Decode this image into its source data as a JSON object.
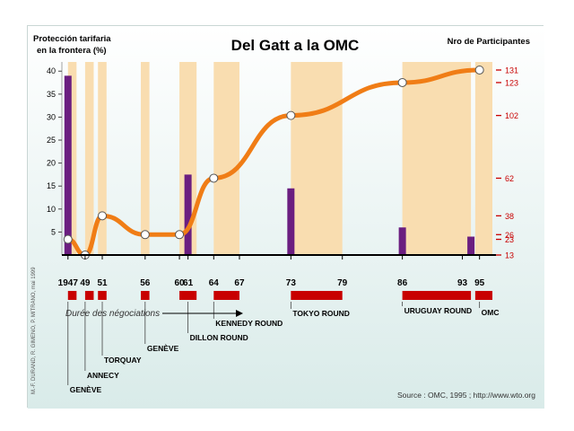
{
  "chart_data": {
    "type": "bar+line",
    "title": "Del Gatt a la OMC",
    "left_axis_title": "Protección tarifaria en la frontera (%)",
    "right_axis_title": "Nro de Participantes",
    "left_ticks": [
      5,
      10,
      15,
      20,
      25,
      30,
      35,
      40
    ],
    "ylim_left": [
      0,
      42
    ],
    "right_ticks": [
      13,
      23,
      26,
      38,
      62,
      102,
      123,
      131
    ],
    "ylim_right": [
      13,
      135
    ],
    "xlim": [
      1946.5,
      1996.5
    ],
    "bars": {
      "name": "Protección tarifaria en la frontera (%)",
      "x": [
        1947,
        1961,
        1973,
        1986,
        1994
      ],
      "values": [
        39,
        17.5,
        14.5,
        6,
        4
      ]
    },
    "participants": {
      "name": "Nro de Participantes",
      "x": [
        1947,
        1949,
        1951,
        1956,
        1960,
        1964,
        1973,
        1986,
        1995
      ],
      "values": [
        23,
        13,
        38,
        26,
        26,
        62,
        102,
        123,
        131
      ]
    },
    "negotiation_periods": [
      {
        "start": 1947,
        "end": 1948
      },
      {
        "start": 1949,
        "end": 1950
      },
      {
        "start": 1950.5,
        "end": 1951.5
      },
      {
        "start": 1955.5,
        "end": 1956.5
      },
      {
        "start": 1960,
        "end": 1962
      },
      {
        "start": 1964,
        "end": 1967
      },
      {
        "start": 1973,
        "end": 1979
      },
      {
        "start": 1986,
        "end": 1994
      },
      {
        "start": 1994.5,
        "end": 1996.5
      }
    ],
    "year_labels": [
      {
        "text": "1947",
        "x": 1947
      },
      {
        "text": "49",
        "x": 1949
      },
      {
        "text": "51",
        "x": 1951
      },
      {
        "text": "56",
        "x": 1956
      },
      {
        "text": "60",
        "x": 1960
      },
      {
        "text": "61",
        "x": 1961
      },
      {
        "text": "64",
        "x": 1964
      },
      {
        "text": "67",
        "x": 1967
      },
      {
        "text": "73",
        "x": 1973
      },
      {
        "text": "79",
        "x": 1979
      },
      {
        "text": "86",
        "x": 1986
      },
      {
        "text": "93",
        "x": 1993
      },
      {
        "text": "95",
        "x": 1995
      }
    ],
    "rounds": [
      {
        "name": "GENÈVE",
        "x": 1947
      },
      {
        "name": "ANNECY",
        "x": 1949
      },
      {
        "name": "TORQUAY",
        "x": 1951
      },
      {
        "name": "GENÈVE",
        "x": 1956
      },
      {
        "name": "DILLON ROUND",
        "x": 1961
      },
      {
        "name": "KENNEDY ROUND",
        "x": 1964
      },
      {
        "name": "TOKYO ROUND",
        "x": 1973
      },
      {
        "name": "URUGUAY ROUND",
        "x": 1986
      },
      {
        "name": "OMC",
        "x": 1995
      }
    ],
    "legend_duration": "Durée des négociations",
    "source": "Source : OMC, 1995 ; http://www.wto.org",
    "credit": "M.-F. DURAND, R. GIMENO, P. MITRANO, mai 1999"
  },
  "colors": {
    "background": "#d9ebe9",
    "band": "#f9ddb0",
    "bar": "#6b1e80",
    "line": "#f07d16",
    "red": "#c80000",
    "axis_right_text": "#c80000"
  }
}
